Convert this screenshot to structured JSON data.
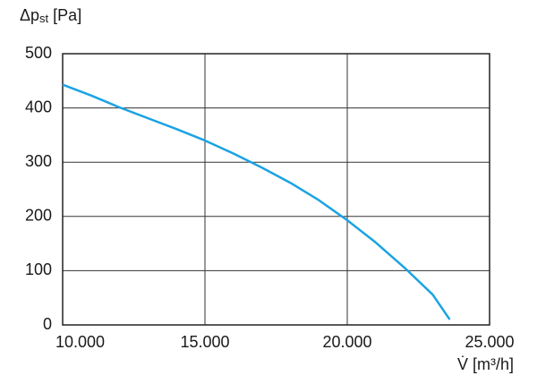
{
  "chart_data": {
    "type": "line",
    "ylabel": {
      "main": "Δp",
      "sub": "st",
      "unit": "[Pa]"
    },
    "xlabel": "V̇ [m³/h]",
    "x": [
      10000,
      11000,
      12000,
      13000,
      14000,
      15000,
      16000,
      17000,
      18000,
      19000,
      20000,
      21000,
      22000,
      23000,
      23600
    ],
    "values": [
      443,
      423,
      401,
      381,
      361,
      340,
      316,
      290,
      262,
      230,
      193,
      152,
      106,
      56,
      10
    ],
    "color": "#1ba3e3",
    "xlim": [
      10000,
      25000
    ],
    "xticks": [
      {
        "value": 10000,
        "label": "10.000"
      },
      {
        "value": 15000,
        "label": "15.000"
      },
      {
        "value": 20000,
        "label": "20.000"
      },
      {
        "value": 25000,
        "label": "25.000"
      }
    ],
    "ylim": [
      0,
      500
    ],
    "yticks": [
      0,
      100,
      200,
      300,
      400,
      500
    ],
    "grid": true
  }
}
